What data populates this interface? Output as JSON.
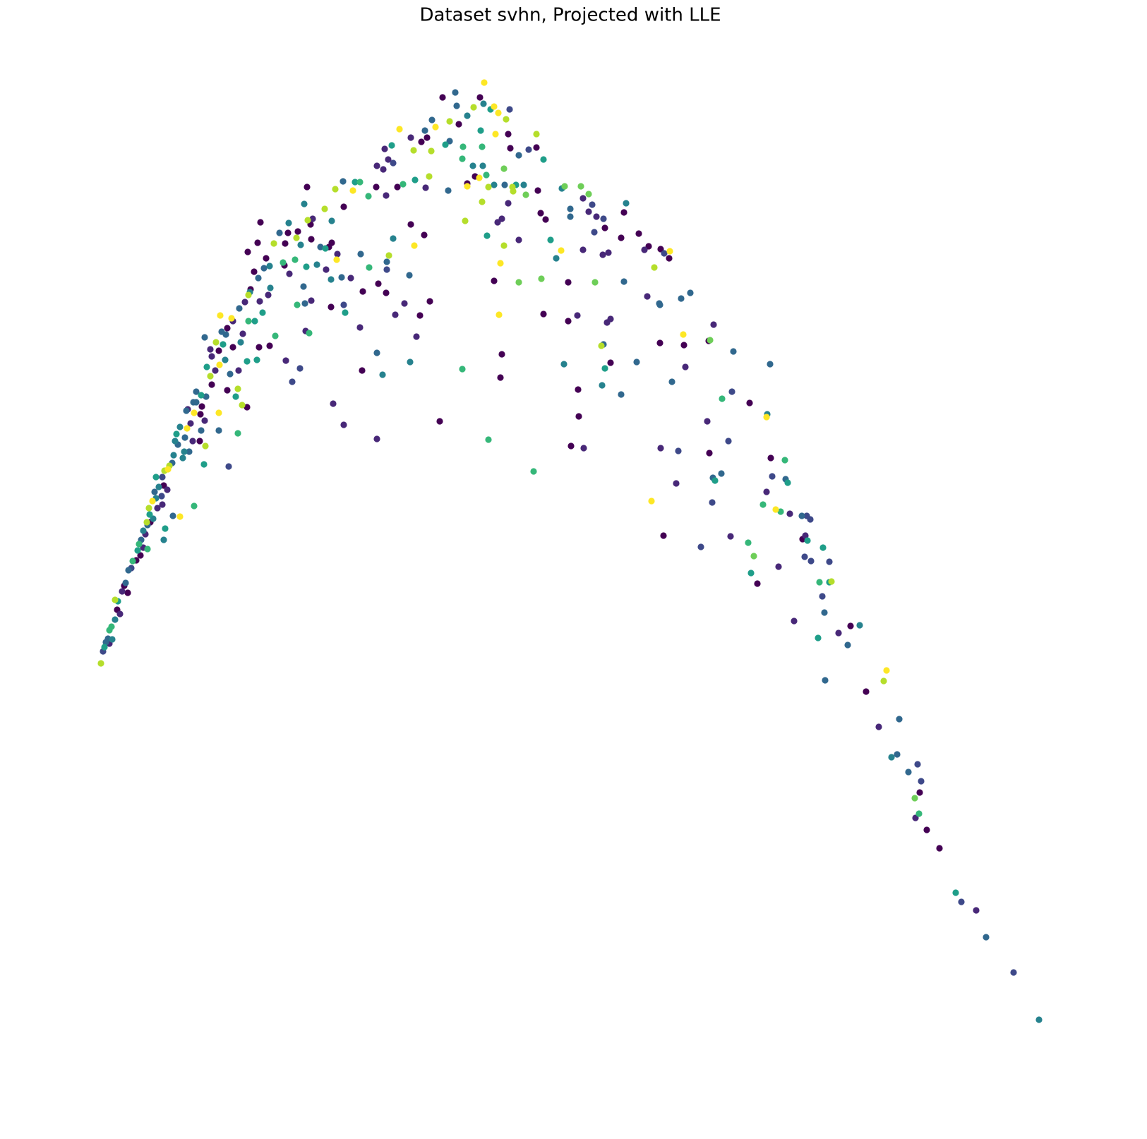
{
  "chart_data": {
    "type": "scatter",
    "title": "Dataset svhn, Projected with LLE",
    "xlim": [
      120,
      1490
    ],
    "ylim": [
      40,
      1400
    ],
    "axis_visible": false,
    "grid": false,
    "series": [
      {
        "color": "#440154",
        "x": [
          1331,
          1313,
          1303,
          1227,
          1205,
          1073,
          1137,
          940,
          1092,
          1005,
          1062,
          1004,
          969,
          935,
          865,
          819,
          820,
          809,
          623,
          709,
          711,
          513,
          595,
          609,
          547,
          536,
          514,
          469,
          382,
          367,
          350,
          199,
          193,
          176,
          181,
          166,
          213,
          232,
          300,
          310,
          322,
          355,
          360,
          377,
          365,
          351,
          408,
          422,
          487,
          435,
          369,
          533,
          563,
          597,
          605,
          627,
          650,
          680,
          720,
          723,
          760,
          762,
          773,
          766,
          857,
          884,
          880,
          905,
          919,
          936,
          948,
          673,
          662,
          601,
          582,
          441,
          404,
          466,
          470,
          440,
          700,
          805,
          770,
          805,
          284,
          286,
          322,
          330,
          403,
          283
        ],
        "values": [
          298,
          324,
          377,
          520,
          613,
          673,
          736,
          741,
          851,
          858,
          929,
          1017,
          1011,
          1014,
          986,
          948,
          910,
          868,
          903,
          965,
          998,
          975,
          1053,
          1073,
          1085,
          1098,
          1087,
          1065,
          1010,
          1008,
          923,
          713,
          706,
          670,
          660,
          636,
          760,
          812,
          955,
          1003,
          1035,
          1090,
          1115,
          1134,
          1156,
          1143,
          1170,
          1172,
          1207,
          1235,
          1185,
          1235,
          1235,
          1299,
          1305,
          1362,
          1324,
          1362,
          1310,
          1290,
          1291,
          1230,
          1189,
          1198,
          1177,
          1199,
          1163,
          1169,
          1151,
          1147,
          1134,
          1250,
          1240,
          1167,
          1182,
          1161,
          1155,
          1150,
          1156,
          1182,
          1102,
          1100,
          1055,
          1045,
          913,
          924,
          947,
          1008,
          1124,
          875
        ]
      },
      {
        "color": "#482878",
        "x": [
          1383,
          1297,
          1245,
          1188,
          1125,
          1103,
          1141,
          1035,
          1119,
          1086,
          958,
          936,
          1002,
          971,
          1011,
          827,
          534,
          487,
          472,
          510,
          590,
          573,
          560,
          497,
          462,
          441,
          433,
          405,
          170,
          155,
          203,
          206,
          223,
          230,
          237,
          270,
          305,
          300,
          330,
          347,
          443,
          547,
          603,
          534,
          543,
          550,
          545,
          582,
          705,
          711,
          720,
          735,
          826,
          834,
          845,
          913,
          854,
          862,
          826,
          478,
          410,
          917,
          818,
          860,
          865,
          266,
          338,
          344,
          368,
          380,
          298,
          273,
          290,
          173
        ],
        "values": [
          210,
          341,
          470,
          603,
          620,
          697,
          741,
          740,
          772,
          803,
          815,
          865,
          903,
          980,
          1040,
          865,
          878,
          898,
          928,
          1036,
          1023,
          1070,
          1054,
          1106,
          1118,
          1074,
          1031,
          989,
          630,
          588,
          724,
          743,
          780,
          785,
          806,
          900,
          975,
          995,
          1045,
          1072,
          1190,
          1223,
          1234,
          1265,
          1260,
          1274,
          1289,
          1305,
          1185,
          1190,
          1212,
          1160,
          1219,
          1200,
          1193,
          1146,
          1139,
          1142,
          1146,
          1140,
          1112,
          1080,
          1053,
          1043,
          1048,
          920,
          975,
          1027,
          1073,
          1082,
          1005,
          875,
          904,
          662
        ]
      },
      {
        "color": "#3e4989",
        "x": [
          1436,
          1362,
          1305,
          1300,
          1165,
          1140,
          1149,
          1175,
          1148,
          1143,
          993,
          1009,
          1094,
          961,
          1032,
          1037,
          146,
          186,
          229,
          230,
          557,
          722,
          749,
          839,
          855,
          842,
          941,
          548,
          487,
          414,
          425,
          324
        ],
        "values": [
          122,
          222,
          393,
          417,
          655,
          711,
          705,
          704,
          764,
          769,
          725,
          788,
          825,
          861,
          875,
          945,
          577,
          695,
          797,
          824,
          1269,
          1345,
          1288,
          1210,
          1190,
          1171,
          1141,
          1118,
          1068,
          959,
          978,
          839
        ]
      },
      {
        "color": "#31688e",
        "x": [
          1397,
          1287,
          1271,
          1274,
          1169,
          1201,
          1168,
          1136,
          1113,
          1010,
          1022,
          952,
          1091,
          1039,
          902,
          880,
          855,
          534,
          484,
          432,
          178,
          153,
          150,
          209,
          244,
          252,
          262,
          278,
          292,
          314,
          339,
          366,
          374,
          396,
          486,
          602,
          612,
          645,
          647,
          637,
          715,
          735,
          808,
          808,
          884,
          934,
          935,
          965,
          978,
          635,
          548,
          580,
          511,
          430,
          454,
          326,
          320,
          290,
          278,
          274,
          264,
          219,
          200,
          182,
          285,
          268,
          245,
          310
        ],
        "values": [
          172,
          406,
          431,
          481,
          536,
          586,
          632,
          769,
          821,
          823,
          829,
          959,
          984,
          1002,
          987,
          941,
          1012,
          1000,
          1107,
          1070,
          674,
          595,
          590,
          756,
          844,
          870,
          880,
          930,
          938,
          1030,
          1063,
          1106,
          1120,
          1170,
          1243,
          1315,
          1330,
          1369,
          1350,
          1300,
          1238,
          1280,
          1204,
          1193,
          1101,
          1070,
          1068,
          1077,
          1085,
          1230,
          1129,
          1110,
          1140,
          1094,
          1150,
          970,
          1026,
          1022,
          945,
          930,
          918,
          803,
          735,
          692,
          890,
          860,
          769,
          890
        ]
      },
      {
        "color": "#26828e",
        "x": [
          1472,
          1263,
          1218,
          1087,
          853,
          799,
          581,
          542,
          469,
          163,
          159,
          217,
          225,
          259,
          261,
          662,
          685,
          796,
          887,
          788,
          700,
          742,
          670,
          684,
          426,
          449,
          470,
          431,
          409,
          221,
          319,
          341,
          354,
          383,
          382,
          255,
          248,
          246,
          203,
          232,
          557
        ],
        "values": [
          55,
          427,
          614,
          913,
          954,
          984,
          987,
          969,
          1104,
          622,
          594,
          765,
          810,
          851,
          860,
          1336,
          1353,
          1233,
          1212,
          1134,
          1238,
          1238,
          1265,
          1265,
          1153,
          1125,
          1187,
          1211,
          1184,
          794,
          990,
          1015,
          1086,
          1092,
          1123,
          895,
          875,
          855,
          748,
          735,
          1162
        ]
      },
      {
        "color": "#1f9e89",
        "x": [
          1354,
          1159,
          1175,
          1064,
          1166,
          1144,
          1116,
          1013,
          857,
          489,
          364,
          350,
          289,
          234,
          167,
          148,
          293,
          316,
          503,
          588,
          555,
          631,
          695,
          681,
          770,
          780,
          690,
          731,
          461,
          434,
          334,
          361,
          372,
          285,
          221,
          250,
          212,
          195
        ],
        "values": [
          235,
          596,
          675,
          688,
          724,
          734,
          816,
          819,
          978,
          1057,
          990,
          988,
          842,
          751,
          648,
          583,
          980,
          1012,
          1242,
          1245,
          1294,
          1295,
          1345,
          1315,
          1274,
          1160,
          1166,
          1238,
          1148,
          1122,
          938,
          1045,
          1057,
          940,
          824,
          885,
          771,
          720
        ]
      },
      {
        "color": "#35b779",
        "x": [
          1302,
          1161,
          1060,
          1106,
          1081,
          1112,
          1023,
          756,
          692,
          655,
          438,
          421,
          390,
          337,
          275,
          209,
          158,
          155,
          197,
          510,
          522,
          571,
          656,
          655,
          683,
          689,
          523,
          418,
          401,
          352,
          188
        ],
        "values": [
          347,
          675,
          731,
          775,
          785,
          848,
          935,
          832,
          877,
          977,
          1028,
          1068,
          1024,
          886,
          783,
          722,
          612,
          607,
          729,
          1242,
          1222,
          1239,
          1292,
          1275,
          1292,
          1252,
          1121,
          1132,
          1128,
          1045,
          705
        ]
      },
      {
        "color": "#6ece58",
        "x": [
          1296,
          1068,
          1006,
          800,
          823,
          834,
          745,
          714,
          735,
          767,
          843
        ],
        "values": [
          369,
          712,
          1018,
          1236,
          1236,
          1225,
          1224,
          1261,
          1100,
          1105,
          1100
        ]
      },
      {
        "color": "#b5de2b",
        "x": [
          143,
          1252,
          1178,
          852,
          343,
          291,
          163,
          211,
          298,
          352,
          388,
          436,
          460,
          475,
          608,
          586,
          611,
          637,
          671,
          717,
          760,
          714,
          683,
          659,
          692,
          726,
          727,
          927,
          551,
          420,
          337,
          306,
          240,
          233,
          208
        ],
        "values": [
          560,
          535,
          676,
          1010,
          926,
          868,
          650,
          780,
          967,
          1082,
          1155,
          1188,
          1204,
          1232,
          1250,
          1287,
          1286,
          1328,
          1348,
          1331,
          1310,
          1152,
          1214,
          1187,
          1235,
          1235,
          1229,
          1121,
          1138,
          1163,
          949,
          1015,
          840,
          833,
          760
        ]
      },
      {
        "color": "#fde725",
        "x": [
          1256,
          1099,
          923,
          1086,
          968,
          255,
          238,
          265,
          275,
          312,
          328,
          500,
          566,
          617,
          686,
          700,
          706,
          702,
          949,
          795,
          709,
          679,
          662,
          587,
          477,
          707,
          310,
          311,
          216
        ],
        "values": [
          550,
          778,
          790,
          909,
          1026,
          768,
          835,
          893,
          915,
          1053,
          1049,
          1230,
          1317,
          1320,
          1383,
          1349,
          1340,
          1310,
          1144,
          1145,
          1127,
          1248,
          1236,
          1152,
          1132,
          1054,
          915,
          983,
          790
        ]
      }
    ]
  }
}
